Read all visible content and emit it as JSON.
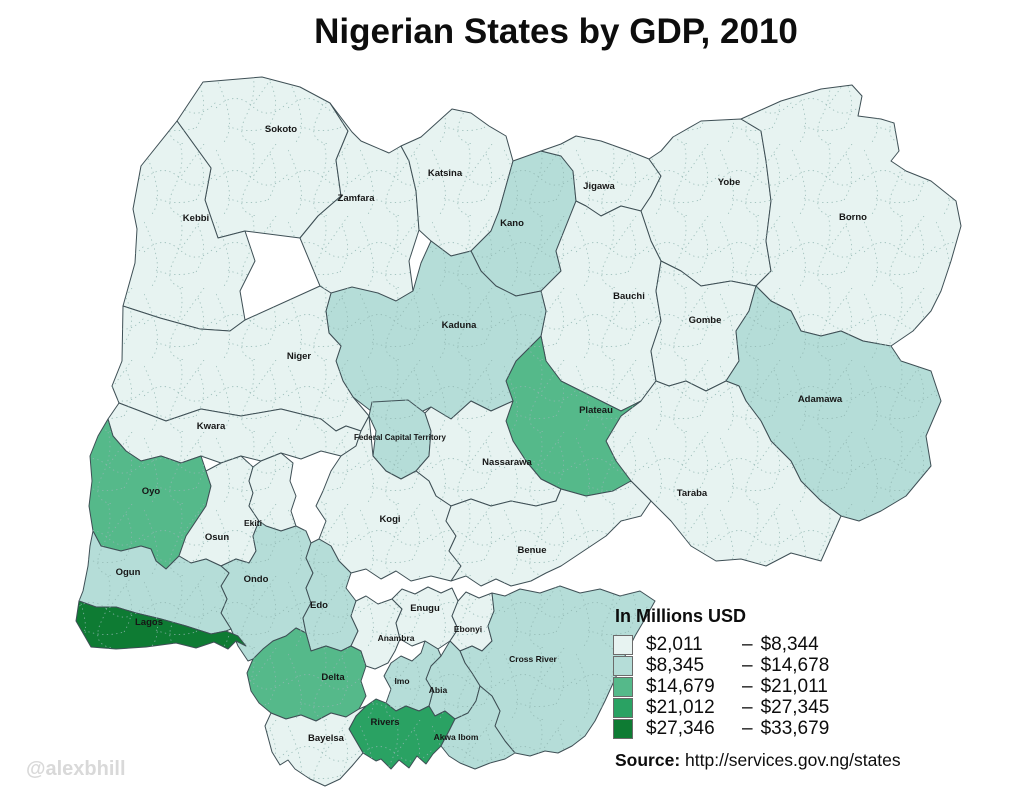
{
  "title": "Nigerian States by GDP, 2010",
  "watermark": "@alexbhill",
  "legend": {
    "title": "In Millions USD",
    "separator": "–",
    "items": [
      {
        "low": "$2,011",
        "high": "$8,344",
        "color": "#e7f3f1"
      },
      {
        "low": "$8,345",
        "high": "$14,678",
        "color": "#b5ddd8"
      },
      {
        "low": "$14,679",
        "high": "$21,011",
        "color": "#55b98a"
      },
      {
        "low": "$21,012",
        "high": "$27,345",
        "color": "#2aa263"
      },
      {
        "low": "$27,346",
        "high": "$33,679",
        "color": "#0e7b33"
      }
    ]
  },
  "source": {
    "label": "Source:",
    "url": "http://services.gov.ng/states"
  },
  "chart_data": {
    "type": "heatmap",
    "title": "Nigerian States by GDP, 2010",
    "unit": "In Millions USD",
    "legend_position": "bottom-right",
    "bins": [
      "$2,011 - $8,344",
      "$8,345 - $14,678",
      "$14,679 - $21,011",
      "$21,012 - $27,345",
      "$27,346 - $33,679"
    ],
    "note": "class = 1..5 index into bins (lightest to darkest)"
  },
  "map": {
    "states": [
      {
        "id": "sokoto",
        "name": "Sokoto",
        "class": 1
      },
      {
        "id": "kebbi",
        "name": "Kebbi",
        "class": 1
      },
      {
        "id": "zamfara",
        "name": "Zamfara",
        "class": 1
      },
      {
        "id": "katsina",
        "name": "Katsina",
        "class": 1
      },
      {
        "id": "kano",
        "name": "Kano",
        "class": 2
      },
      {
        "id": "jigawa",
        "name": "Jigawa",
        "class": 1
      },
      {
        "id": "yobe",
        "name": "Yobe",
        "class": 1
      },
      {
        "id": "borno",
        "name": "Borno",
        "class": 1
      },
      {
        "id": "bauchi",
        "name": "Bauchi",
        "class": 1
      },
      {
        "id": "gombe",
        "name": "Gombe",
        "class": 1
      },
      {
        "id": "adamawa",
        "name": "Adamawa",
        "class": 2
      },
      {
        "id": "taraba",
        "name": "Taraba",
        "class": 1
      },
      {
        "id": "plateau",
        "name": "Plateau",
        "class": 3
      },
      {
        "id": "kaduna",
        "name": "Kaduna",
        "class": 2
      },
      {
        "id": "niger",
        "name": "Niger",
        "class": 1
      },
      {
        "id": "kwara",
        "name": "Kwara",
        "class": 1
      },
      {
        "id": "fct",
        "name": "Federal Capital Territory",
        "class": 2
      },
      {
        "id": "nassarawa",
        "name": "Nassarawa",
        "class": 1
      },
      {
        "id": "kogi",
        "name": "Kogi",
        "class": 1
      },
      {
        "id": "benue",
        "name": "Benue",
        "class": 1
      },
      {
        "id": "oyo",
        "name": "Oyo",
        "class": 3
      },
      {
        "id": "osun",
        "name": "Osun",
        "class": 1
      },
      {
        "id": "ekiti",
        "name": "Ekiti",
        "class": 1
      },
      {
        "id": "ondo",
        "name": "Ondo",
        "class": 2
      },
      {
        "id": "ogun",
        "name": "Ogun",
        "class": 2
      },
      {
        "id": "lagos",
        "name": "Lagos",
        "class": 5
      },
      {
        "id": "edo",
        "name": "Edo",
        "class": 2
      },
      {
        "id": "delta",
        "name": "Delta",
        "class": 3
      },
      {
        "id": "anambra",
        "name": "Anambra",
        "class": 1
      },
      {
        "id": "enugu",
        "name": "Enugu",
        "class": 1
      },
      {
        "id": "ebonyi",
        "name": "Ebonyi",
        "class": 1
      },
      {
        "id": "cross_river",
        "name": "Cross River",
        "class": 2
      },
      {
        "id": "abia",
        "name": "Abia",
        "class": 2
      },
      {
        "id": "imo",
        "name": "Imo",
        "class": 2
      },
      {
        "id": "rivers",
        "name": "Rivers",
        "class": 4
      },
      {
        "id": "bayelsa",
        "name": "Bayelsa",
        "class": 1
      },
      {
        "id": "akwa_ibom",
        "name": "Akwa Ibom",
        "class": 2
      }
    ]
  }
}
